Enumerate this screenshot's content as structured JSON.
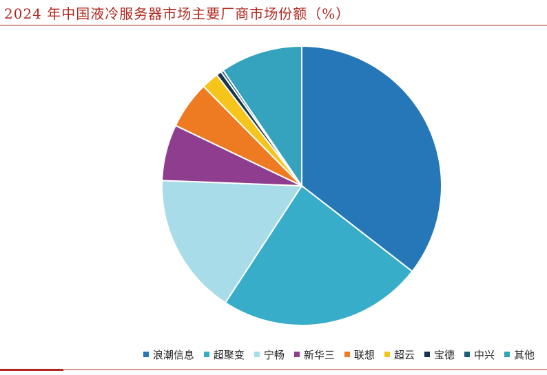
{
  "title": "2024 年中国液冷服务器市场主要厂商市场份额（%）",
  "chart_data": {
    "type": "pie",
    "title": "2024 年中国液冷服务器市场主要厂商市场份额（%）",
    "legend_position": "bottom-right",
    "slices": [
      {
        "name": "浪潮信息",
        "value": 35.5,
        "color": "#2677b8"
      },
      {
        "name": "超聚变",
        "value": 23.7,
        "color": "#37adc9"
      },
      {
        "name": "宁畅",
        "value": 16.4,
        "color": "#a8dce8"
      },
      {
        "name": "新华三",
        "value": 6.5,
        "color": "#8f3d8e"
      },
      {
        "name": "联想",
        "value": 5.5,
        "color": "#ee7b22"
      },
      {
        "name": "超云",
        "value": 2.0,
        "color": "#f5c51b"
      },
      {
        "name": "宝德",
        "value": 0.6,
        "color": "#17344e"
      },
      {
        "name": "中兴",
        "value": 0.3,
        "color": "#1b5f77"
      },
      {
        "name": "其他",
        "value": 9.5,
        "color": "#35a3bd"
      }
    ]
  }
}
